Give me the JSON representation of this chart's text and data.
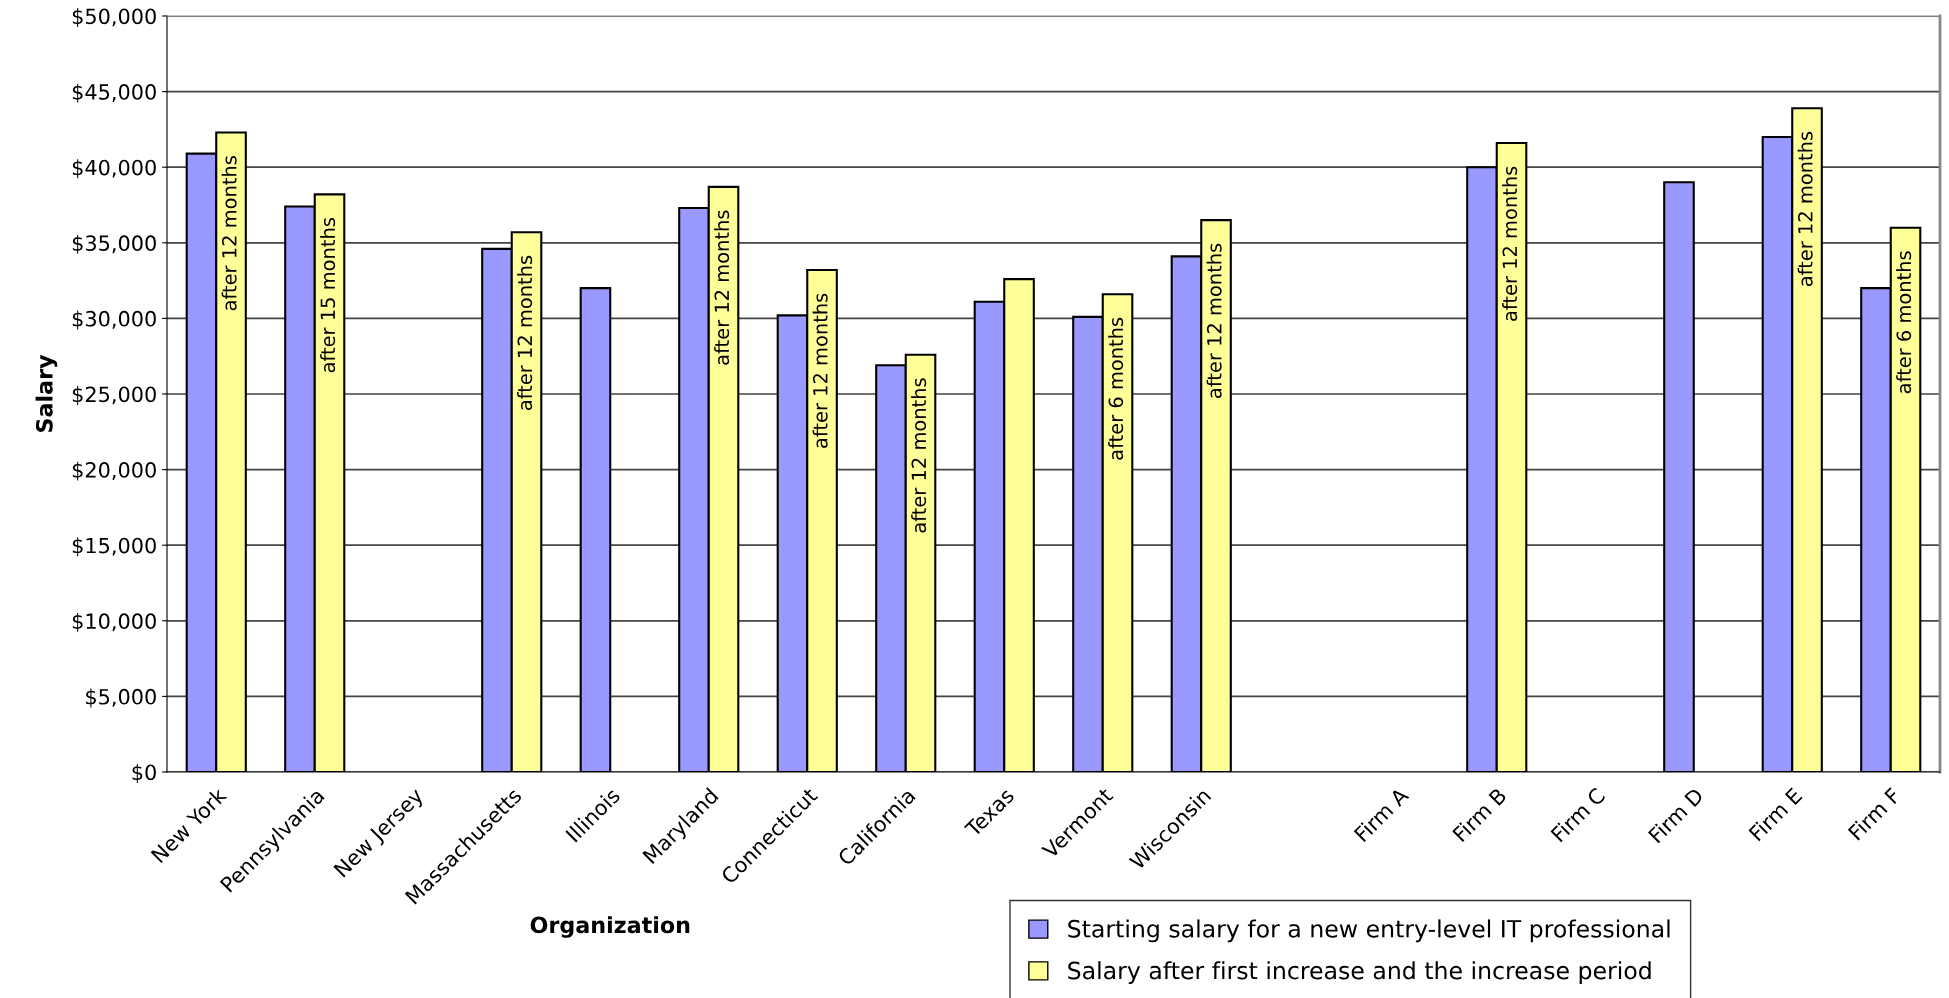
{
  "chart_data": {
    "type": "bar",
    "xlabel": "Organization",
    "ylabel": "Salary",
    "categories": [
      "New York",
      "Pennsylvania",
      "New Jersey",
      "Massachusetts",
      "Illinois",
      "Maryland",
      "Connecticut",
      "California",
      "Texas",
      "Vermont",
      "Wisconsin",
      null,
      "Firm A",
      "Firm B",
      "Firm C",
      "Firm D",
      "Firm E",
      "Firm F"
    ],
    "series": [
      {
        "name": "Starting salary for a new entry-level IT professional",
        "color": "#9999ff",
        "values": [
          40900,
          37400,
          null,
          34600,
          32000,
          37300,
          30200,
          26900,
          31100,
          30100,
          34100,
          null,
          null,
          40000,
          null,
          39000,
          42000,
          32000
        ]
      },
      {
        "name": "Salary after first increase and the increase period",
        "color": "#ffff99",
        "values": [
          42300,
          38200,
          null,
          35700,
          null,
          38700,
          33200,
          27600,
          32600,
          31600,
          36500,
          null,
          null,
          41600,
          null,
          null,
          43900,
          36000
        ],
        "value_labels": [
          "after 12 months",
          "after 15 months",
          null,
          "after 12 months",
          null,
          "after 12 months",
          "after 12 months",
          "after 12 months",
          null,
          "after 6 months",
          "after 12 months",
          null,
          null,
          "after 12 months",
          null,
          null,
          "after 12 months",
          "after 6 months"
        ]
      }
    ],
    "ylim": [
      0,
      50000
    ],
    "yticks": [
      {
        "value": 0,
        "label": "$0"
      },
      {
        "value": 5000,
        "label": "$5,000"
      },
      {
        "value": 10000,
        "label": "$10,000"
      },
      {
        "value": 15000,
        "label": "$15,000"
      },
      {
        "value": 20000,
        "label": "$20,000"
      },
      {
        "value": 25000,
        "label": "$25,000"
      },
      {
        "value": 30000,
        "label": "$30,000"
      },
      {
        "value": 35000,
        "label": "$35,000"
      },
      {
        "value": 40000,
        "label": "$40,000"
      },
      {
        "value": 45000,
        "label": "$45,000"
      },
      {
        "value": 50000,
        "label": "$50,000"
      }
    ],
    "grid": "y",
    "legend": "bottom right"
  }
}
